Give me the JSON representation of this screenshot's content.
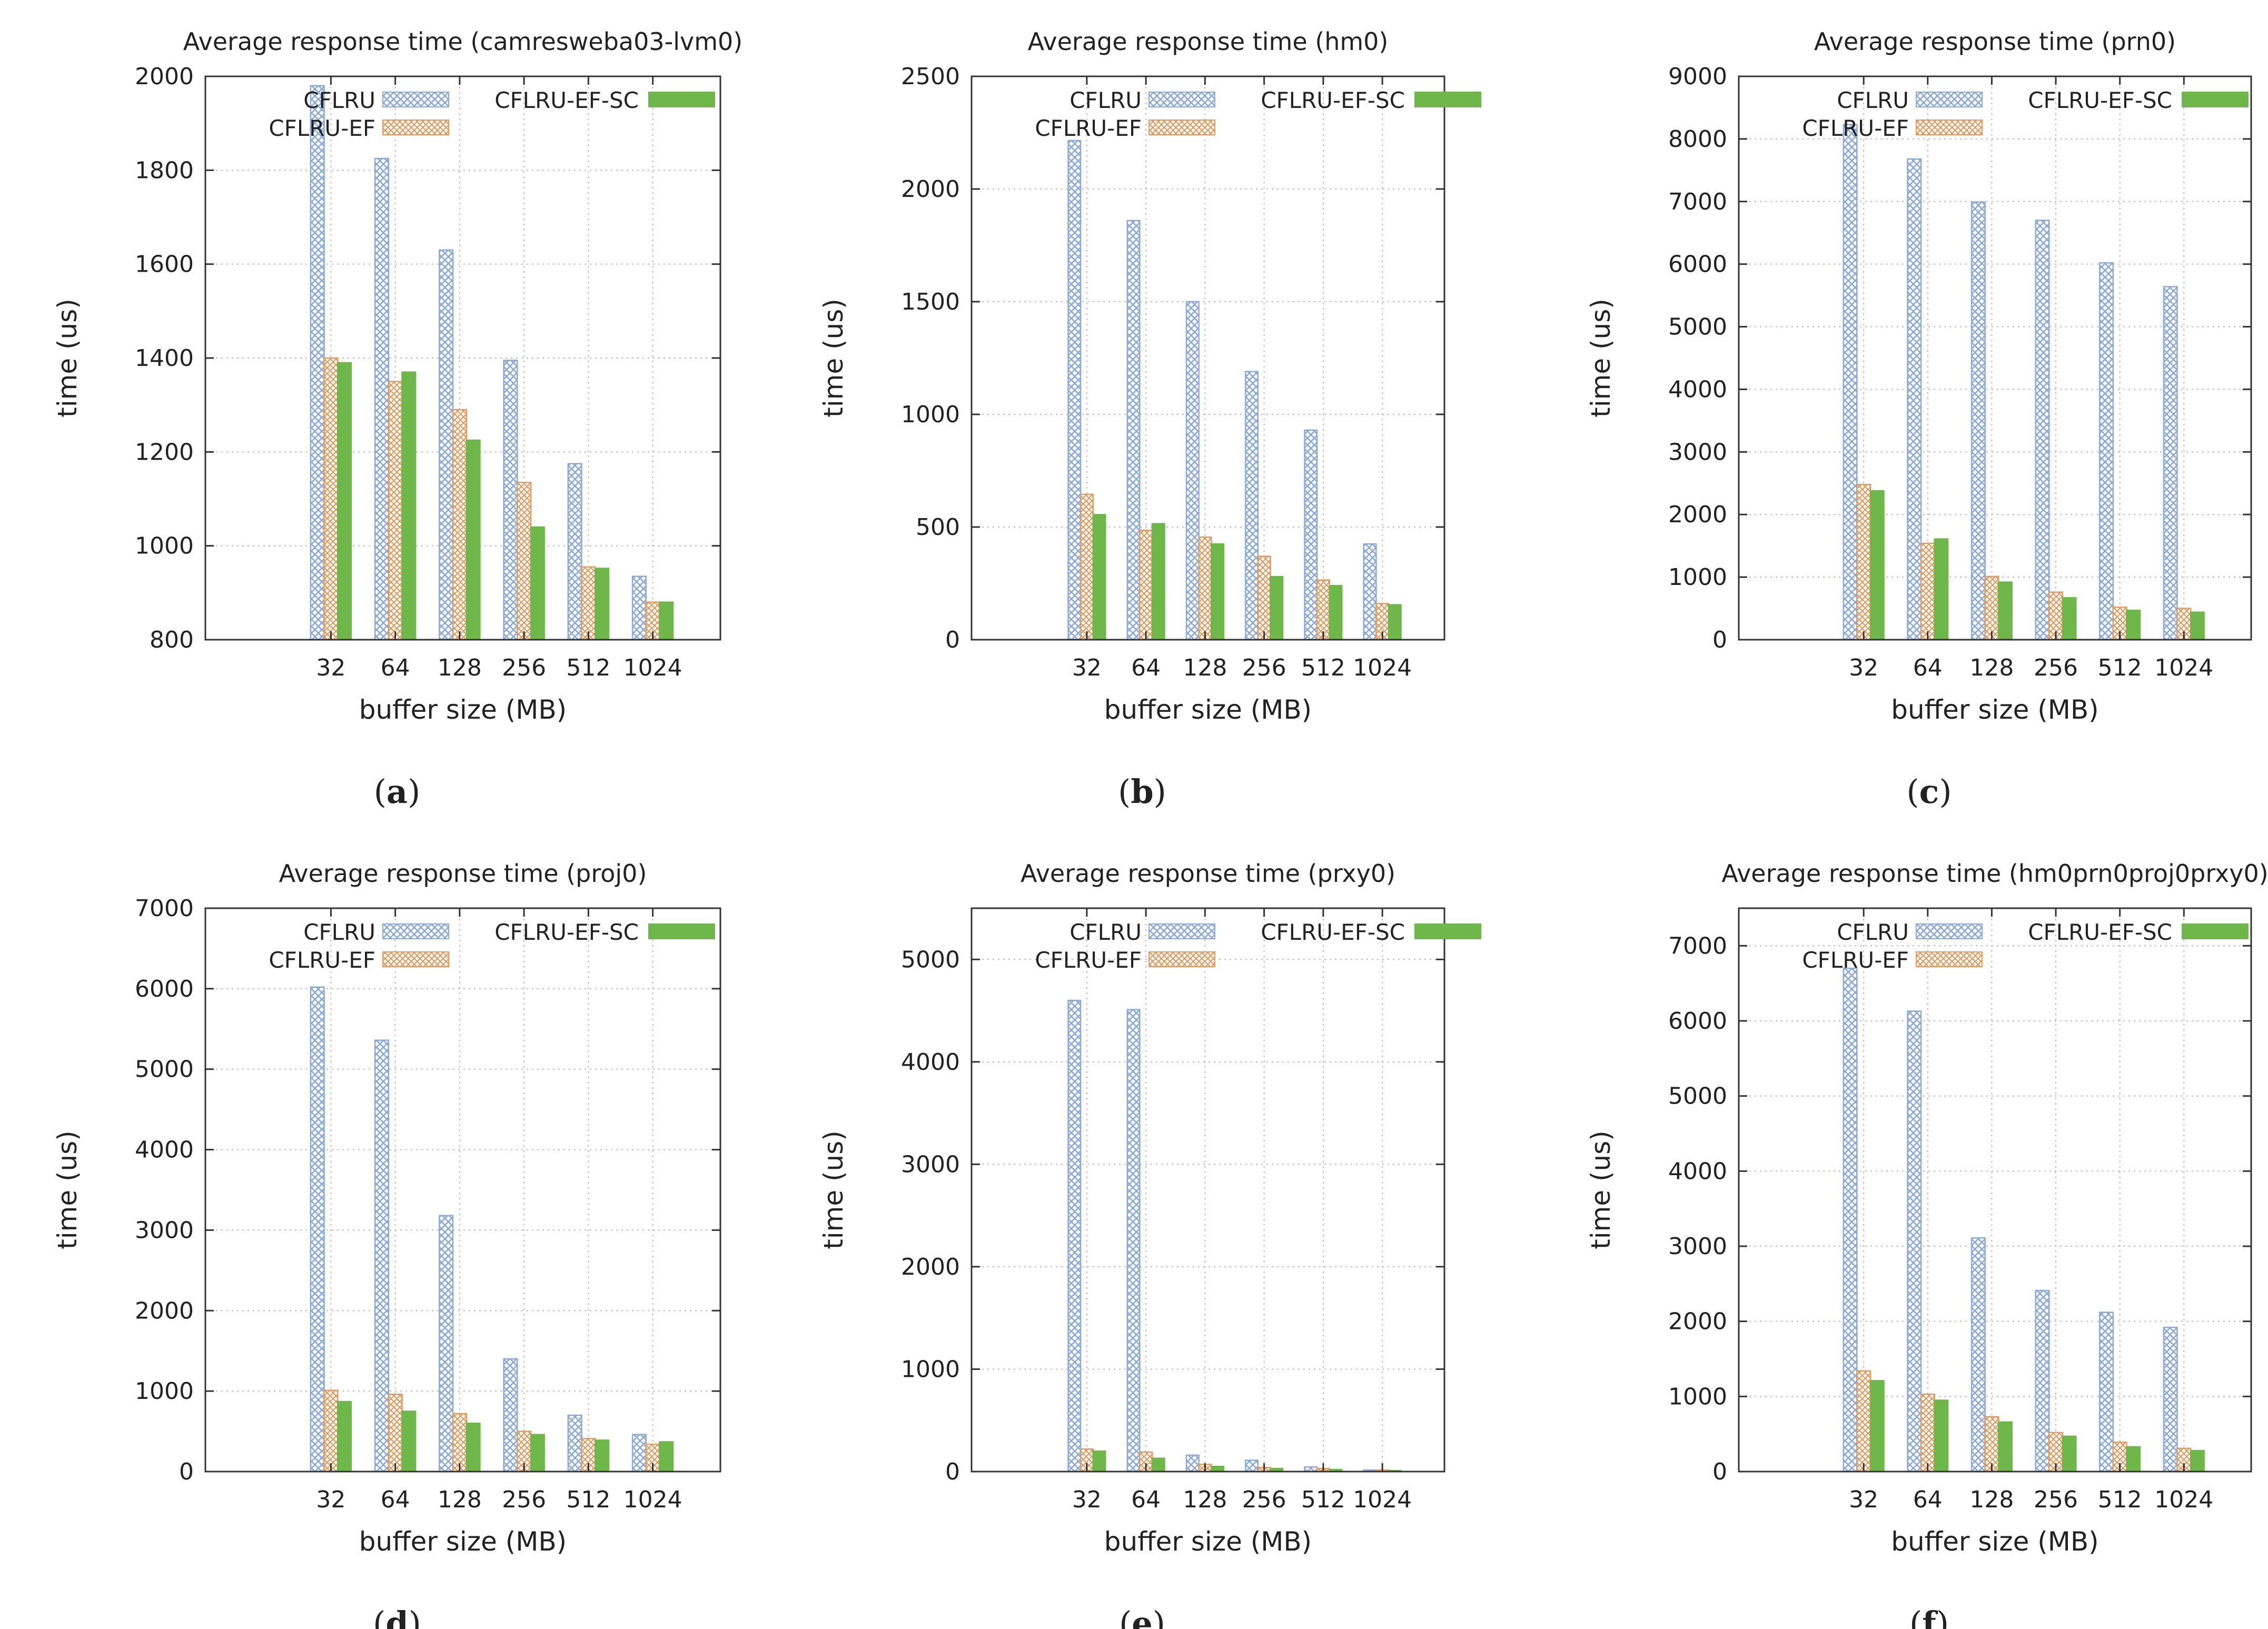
{
  "colors": {
    "cflru": "#8aa9d9",
    "cflru_ef": "#e39a5c",
    "cflru_ef_sc": "#6fb64b",
    "grid": "#b8b8b8",
    "axis": "#333333"
  },
  "chart_data": [
    {
      "type": "bar",
      "panel": "a",
      "title": "Average response time (camresweba03-lvm0)",
      "xlabel": "buffer size (MB)",
      "ylabel": "time (us)",
      "ylim": [
        800,
        2000
      ],
      "yticks": [
        800,
        1000,
        1200,
        1400,
        1600,
        1800,
        2000
      ],
      "categories": [
        "32",
        "64",
        "128",
        "256",
        "512",
        "1024"
      ],
      "series": [
        {
          "name": "CFLRU",
          "values": [
            1980,
            1825,
            1630,
            1395,
            1175,
            935
          ]
        },
        {
          "name": "CFLRU-EF",
          "values": [
            1400,
            1350,
            1290,
            1135,
            955,
            880
          ]
        },
        {
          "name": "CFLRU-EF-SC",
          "values": [
            1390,
            1370,
            1225,
            1040,
            952,
            880
          ]
        }
      ]
    },
    {
      "type": "bar",
      "panel": "b",
      "title": "Average response time (hm0)",
      "xlabel": "buffer size (MB)",
      "ylabel": "time (us)",
      "ylim": [
        0,
        2500
      ],
      "yticks": [
        0,
        500,
        1000,
        1500,
        2000,
        2500
      ],
      "categories": [
        "32",
        "64",
        "128",
        "256",
        "512",
        "1024"
      ],
      "series": [
        {
          "name": "CFLRU",
          "values": [
            2215,
            1860,
            1500,
            1190,
            930,
            425
          ]
        },
        {
          "name": "CFLRU-EF",
          "values": [
            645,
            485,
            455,
            370,
            265,
            160
          ]
        },
        {
          "name": "CFLRU-EF-SC",
          "values": [
            555,
            515,
            425,
            280,
            240,
            155
          ]
        }
      ]
    },
    {
      "type": "bar",
      "panel": "c",
      "title": "Average response time (prn0)",
      "xlabel": "buffer size (MB)",
      "ylabel": "time (us)",
      "ylim": [
        0,
        9000
      ],
      "yticks": [
        0,
        1000,
        2000,
        3000,
        4000,
        5000,
        6000,
        7000,
        8000,
        9000
      ],
      "categories": [
        "32",
        "64",
        "128",
        "256",
        "512",
        "1024"
      ],
      "series": [
        {
          "name": "CFLRU",
          "values": [
            8230,
            7680,
            6990,
            6700,
            6020,
            5640
          ]
        },
        {
          "name": "CFLRU-EF",
          "values": [
            2480,
            1540,
            1010,
            760,
            520,
            500
          ]
        },
        {
          "name": "CFLRU-EF-SC",
          "values": [
            2380,
            1610,
            920,
            670,
            470,
            440
          ]
        }
      ]
    },
    {
      "type": "bar",
      "panel": "d",
      "title": "Average response time (proj0)",
      "xlabel": "buffer size (MB)",
      "ylabel": "time (us)",
      "ylim": [
        0,
        7000
      ],
      "yticks": [
        0,
        1000,
        2000,
        3000,
        4000,
        5000,
        6000,
        7000
      ],
      "categories": [
        "32",
        "64",
        "128",
        "256",
        "512",
        "1024"
      ],
      "series": [
        {
          "name": "CFLRU",
          "values": [
            6020,
            5360,
            3180,
            1400,
            700,
            460
          ]
        },
        {
          "name": "CFLRU-EF",
          "values": [
            1010,
            960,
            720,
            500,
            410,
            340
          ]
        },
        {
          "name": "CFLRU-EF-SC",
          "values": [
            870,
            750,
            600,
            460,
            390,
            370
          ]
        }
      ]
    },
    {
      "type": "bar",
      "panel": "e",
      "title": "Average response time (prxy0)",
      "xlabel": "buffer size (MB)",
      "ylabel": "time (us)",
      "ylim": [
        0,
        5500
      ],
      "yticks": [
        0,
        1000,
        2000,
        3000,
        4000,
        5000
      ],
      "categories": [
        "32",
        "64",
        "128",
        "256",
        "512",
        "1024"
      ],
      "series": [
        {
          "name": "CFLRU",
          "values": [
            4600,
            4510,
            160,
            110,
            45,
            15
          ]
        },
        {
          "name": "CFLRU-EF",
          "values": [
            220,
            190,
            70,
            40,
            30,
            15
          ]
        },
        {
          "name": "CFLRU-EF-SC",
          "values": [
            200,
            130,
            50,
            30,
            20,
            10
          ]
        }
      ]
    },
    {
      "type": "bar",
      "panel": "f",
      "title": "Average response time (hm0prn0proj0prxy0)",
      "xlabel": "buffer size (MB)",
      "ylabel": "time (us)",
      "ylim": [
        0,
        7500
      ],
      "yticks": [
        0,
        1000,
        2000,
        3000,
        4000,
        5000,
        6000,
        7000
      ],
      "categories": [
        "32",
        "64",
        "128",
        "256",
        "512",
        "1024"
      ],
      "series": [
        {
          "name": "CFLRU",
          "values": [
            6700,
            6130,
            3110,
            2410,
            2120,
            1920
          ]
        },
        {
          "name": "CFLRU-EF",
          "values": [
            1340,
            1030,
            730,
            520,
            390,
            310
          ]
        },
        {
          "name": "CFLRU-EF-SC",
          "values": [
            1210,
            950,
            660,
            470,
            330,
            280
          ]
        }
      ]
    }
  ]
}
